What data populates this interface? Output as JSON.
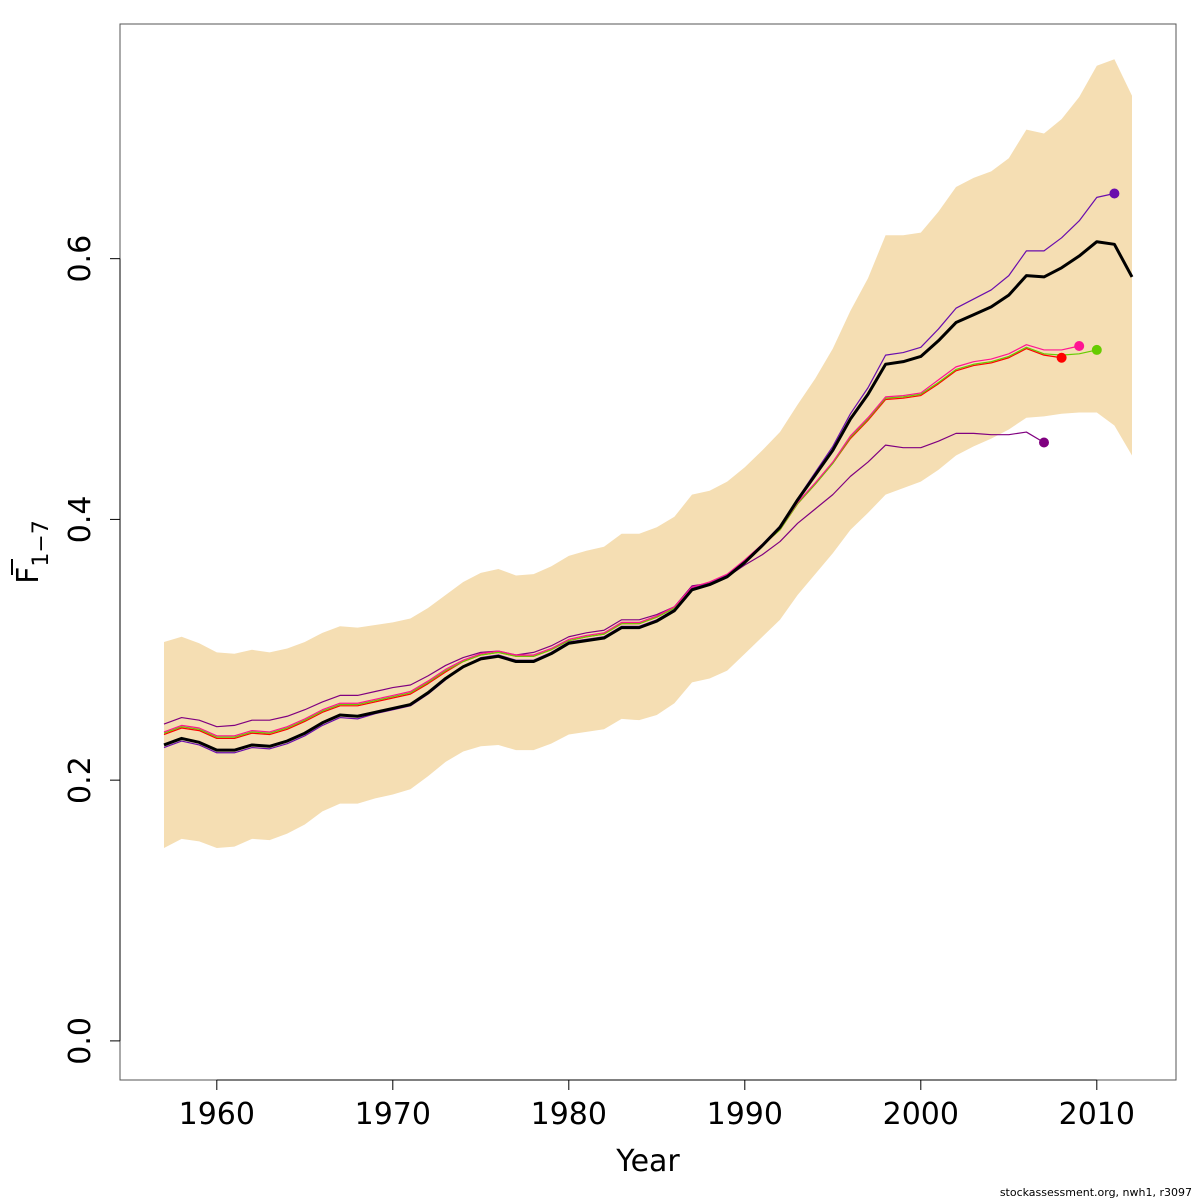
{
  "chart_data": {
    "type": "line",
    "xlabel": "Year",
    "ylabel_main": "F",
    "ylabel_sub": "1−7",
    "xlim": [
      1954.5,
      2014.5
    ],
    "ylim": [
      -0.03,
      0.78
    ],
    "x_ticks": [
      1960,
      1970,
      1980,
      1990,
      2000,
      2010
    ],
    "x_tick_labels": [
      "1960",
      "1970",
      "1980",
      "1990",
      "2000",
      "2010"
    ],
    "y_ticks": [
      0.0,
      0.2,
      0.4,
      0.6
    ],
    "y_tick_labels": [
      "0.0",
      "0.2",
      "0.4",
      "0.6"
    ],
    "grid": false,
    "band_color": "#F5DEB3",
    "band_years": [
      1957,
      1958,
      1959,
      1960,
      1961,
      1962,
      1963,
      1964,
      1965,
      1966,
      1967,
      1968,
      1969,
      1970,
      1971,
      1972,
      1973,
      1974,
      1975,
      1976,
      1977,
      1978,
      1979,
      1980,
      1981,
      1982,
      1983,
      1984,
      1985,
      1986,
      1987,
      1988,
      1989,
      1990,
      1991,
      1992,
      1993,
      1994,
      1995,
      1996,
      1997,
      1998,
      1999,
      2000,
      2001,
      2002,
      2003,
      2004,
      2005,
      2006,
      2007,
      2008,
      2009,
      2010,
      2011,
      2012
    ],
    "band_upper": [
      0.306,
      0.31,
      0.305,
      0.298,
      0.297,
      0.3,
      0.298,
      0.301,
      0.306,
      0.313,
      0.318,
      0.317,
      0.319,
      0.321,
      0.324,
      0.332,
      0.342,
      0.352,
      0.359,
      0.362,
      0.357,
      0.358,
      0.364,
      0.372,
      0.376,
      0.379,
      0.389,
      0.389,
      0.394,
      0.402,
      0.419,
      0.422,
      0.429,
      0.44,
      0.453,
      0.467,
      0.488,
      0.508,
      0.531,
      0.56,
      0.585,
      0.618,
      0.618,
      0.62,
      0.636,
      0.655,
      0.662,
      0.667,
      0.677,
      0.699,
      0.696,
      0.707,
      0.724,
      0.748,
      0.753,
      0.725
    ],
    "band_lower": [
      0.148,
      0.155,
      0.153,
      0.148,
      0.149,
      0.155,
      0.154,
      0.159,
      0.166,
      0.176,
      0.182,
      0.182,
      0.186,
      0.189,
      0.193,
      0.203,
      0.214,
      0.222,
      0.226,
      0.227,
      0.223,
      0.223,
      0.228,
      0.235,
      0.237,
      0.239,
      0.247,
      0.246,
      0.25,
      0.259,
      0.275,
      0.278,
      0.284,
      0.297,
      0.31,
      0.323,
      0.342,
      0.358,
      0.374,
      0.392,
      0.405,
      0.419,
      0.424,
      0.429,
      0.438,
      0.449,
      0.456,
      0.462,
      0.469,
      0.478,
      0.479,
      0.481,
      0.482,
      0.482,
      0.472,
      0.449
    ],
    "series": [
      {
        "color": "#000000",
        "width": 3,
        "x": [
          1957,
          1958,
          1959,
          1960,
          1961,
          1962,
          1963,
          1964,
          1965,
          1966,
          1967,
          1968,
          1969,
          1970,
          1971,
          1972,
          1973,
          1974,
          1975,
          1976,
          1977,
          1978,
          1979,
          1980,
          1981,
          1982,
          1983,
          1984,
          1985,
          1986,
          1987,
          1988,
          1989,
          1990,
          1991,
          1992,
          1993,
          1994,
          1995,
          1996,
          1997,
          1998,
          1999,
          2000,
          2001,
          2002,
          2003,
          2004,
          2005,
          2006,
          2007,
          2008,
          2009,
          2010,
          2011,
          2012
        ],
        "y": [
          0.227,
          0.232,
          0.229,
          0.223,
          0.223,
          0.227,
          0.226,
          0.23,
          0.236,
          0.244,
          0.25,
          0.249,
          0.252,
          0.255,
          0.258,
          0.267,
          0.278,
          0.287,
          0.293,
          0.295,
          0.291,
          0.291,
          0.297,
          0.305,
          0.307,
          0.309,
          0.317,
          0.317,
          0.322,
          0.33,
          0.346,
          0.35,
          0.356,
          0.367,
          0.38,
          0.394,
          0.415,
          0.434,
          0.453,
          0.477,
          0.496,
          0.519,
          0.521,
          0.525,
          0.537,
          0.551,
          0.557,
          0.563,
          0.572,
          0.587,
          0.586,
          0.593,
          0.602,
          0.613,
          0.611,
          0.586
        ]
      },
      {
        "color": "#FF0000",
        "width": 1.2,
        "x": [
          1957,
          1958,
          1959,
          1960,
          1961,
          1962,
          1963,
          1964,
          1965,
          1966,
          1967,
          1968,
          1969,
          1970,
          1971,
          1972,
          1973,
          1974,
          1975,
          1976,
          1977,
          1978,
          1979,
          1980,
          1981,
          1982,
          1983,
          1984,
          1985,
          1986,
          1987,
          1988,
          1989,
          1990,
          1991,
          1992,
          1993,
          1994,
          1995,
          1996,
          1997,
          1998,
          1999,
          2000,
          2001,
          2002,
          2003,
          2004,
          2005,
          2006,
          2007,
          2008
        ],
        "y": [
          0.235,
          0.24,
          0.238,
          0.232,
          0.232,
          0.236,
          0.235,
          0.239,
          0.245,
          0.252,
          0.257,
          0.257,
          0.26,
          0.263,
          0.266,
          0.274,
          0.283,
          0.291,
          0.296,
          0.298,
          0.295,
          0.295,
          0.3,
          0.307,
          0.31,
          0.312,
          0.32,
          0.32,
          0.325,
          0.332,
          0.347,
          0.351,
          0.357,
          0.368,
          0.38,
          0.392,
          0.412,
          0.427,
          0.443,
          0.462,
          0.476,
          0.492,
          0.493,
          0.495,
          0.504,
          0.514,
          0.518,
          0.52,
          0.524,
          0.531,
          0.526,
          0.524
        ],
        "end_point": [
          2008,
          0.524
        ]
      },
      {
        "color": "#FF1493",
        "width": 1.2,
        "x": [
          1957,
          1958,
          1959,
          1960,
          1961,
          1962,
          1963,
          1964,
          1965,
          1966,
          1967,
          1968,
          1969,
          1970,
          1971,
          1972,
          1973,
          1974,
          1975,
          1976,
          1977,
          1978,
          1979,
          1980,
          1981,
          1982,
          1983,
          1984,
          1985,
          1986,
          1987,
          1988,
          1989,
          1990,
          1991,
          1992,
          1993,
          1994,
          1995,
          1996,
          1997,
          1998,
          1999,
          2000,
          2001,
          2002,
          2003,
          2004,
          2005,
          2006,
          2007,
          2008,
          2009
        ],
        "y": [
          0.237,
          0.242,
          0.24,
          0.234,
          0.234,
          0.238,
          0.237,
          0.241,
          0.247,
          0.254,
          0.259,
          0.259,
          0.262,
          0.265,
          0.268,
          0.276,
          0.285,
          0.292,
          0.297,
          0.299,
          0.296,
          0.296,
          0.301,
          0.308,
          0.311,
          0.313,
          0.321,
          0.321,
          0.326,
          0.333,
          0.348,
          0.352,
          0.358,
          0.369,
          0.381,
          0.393,
          0.413,
          0.428,
          0.444,
          0.464,
          0.478,
          0.494,
          0.495,
          0.497,
          0.507,
          0.517,
          0.521,
          0.523,
          0.527,
          0.534,
          0.53,
          0.53,
          0.533
        ],
        "end_point": [
          2009,
          0.533
        ]
      },
      {
        "color": "#66CC00",
        "width": 1.2,
        "x": [
          1957,
          1958,
          1959,
          1960,
          1961,
          1962,
          1963,
          1964,
          1965,
          1966,
          1967,
          1968,
          1969,
          1970,
          1971,
          1972,
          1973,
          1974,
          1975,
          1976,
          1977,
          1978,
          1979,
          1980,
          1981,
          1982,
          1983,
          1984,
          1985,
          1986,
          1987,
          1988,
          1989,
          1990,
          1991,
          1992,
          1993,
          1994,
          1995,
          1996,
          1997,
          1998,
          1999,
          2000,
          2001,
          2002,
          2003,
          2004,
          2005,
          2006,
          2007,
          2008,
          2009,
          2010
        ],
        "y": [
          0.236,
          0.241,
          0.239,
          0.233,
          0.233,
          0.237,
          0.236,
          0.24,
          0.246,
          0.253,
          0.258,
          0.258,
          0.261,
          0.264,
          0.267,
          0.275,
          0.284,
          0.291,
          0.296,
          0.298,
          0.295,
          0.295,
          0.3,
          0.307,
          0.31,
          0.312,
          0.32,
          0.32,
          0.325,
          0.332,
          0.347,
          0.351,
          0.357,
          0.368,
          0.38,
          0.392,
          0.412,
          0.427,
          0.443,
          0.463,
          0.477,
          0.493,
          0.494,
          0.496,
          0.505,
          0.515,
          0.519,
          0.521,
          0.525,
          0.532,
          0.527,
          0.526,
          0.527,
          0.53
        ],
        "end_point": [
          2010,
          0.53
        ]
      },
      {
        "color": "#800080",
        "width": 1.2,
        "x": [
          1957,
          1958,
          1959,
          1960,
          1961,
          1962,
          1963,
          1964,
          1965,
          1966,
          1967,
          1968,
          1969,
          1970,
          1971,
          1972,
          1973,
          1974,
          1975,
          1976,
          1977,
          1978,
          1979,
          1980,
          1981,
          1982,
          1983,
          1984,
          1985,
          1986,
          1987,
          1988,
          1989,
          1990,
          1991,
          1992,
          1993,
          1994,
          1995,
          1996,
          1997,
          1998,
          1999,
          2000,
          2001,
          2002,
          2003,
          2004,
          2005,
          2006,
          2007
        ],
        "y": [
          0.243,
          0.248,
          0.246,
          0.241,
          0.242,
          0.246,
          0.246,
          0.249,
          0.254,
          0.26,
          0.265,
          0.265,
          0.268,
          0.271,
          0.273,
          0.28,
          0.288,
          0.294,
          0.298,
          0.299,
          0.296,
          0.298,
          0.303,
          0.31,
          0.313,
          0.315,
          0.323,
          0.323,
          0.327,
          0.333,
          0.349,
          0.351,
          0.356,
          0.365,
          0.373,
          0.383,
          0.397,
          0.408,
          0.419,
          0.433,
          0.444,
          0.457,
          0.455,
          0.455,
          0.46,
          0.466,
          0.466,
          0.465,
          0.465,
          0.467,
          0.459
        ],
        "end_point": [
          2007,
          0.459
        ]
      },
      {
        "color": "#6A0DAD",
        "width": 1.2,
        "x": [
          1957,
          1958,
          1959,
          1960,
          1961,
          1962,
          1963,
          1964,
          1965,
          1966,
          1967,
          1968,
          1969,
          1970,
          1971,
          1972,
          1973,
          1974,
          1975,
          1976,
          1977,
          1978,
          1979,
          1980,
          1981,
          1982,
          1983,
          1984,
          1985,
          1986,
          1987,
          1988,
          1989,
          1990,
          1991,
          1992,
          1993,
          1994,
          1995,
          1996,
          1997,
          1998,
          1999,
          2000,
          2001,
          2002,
          2003,
          2004,
          2005,
          2006,
          2007,
          2008,
          2009,
          2010,
          2011
        ],
        "y": [
          0.225,
          0.23,
          0.227,
          0.221,
          0.221,
          0.225,
          0.224,
          0.228,
          0.234,
          0.242,
          0.248,
          0.247,
          0.251,
          0.254,
          0.257,
          0.266,
          0.277,
          0.287,
          0.294,
          0.296,
          0.292,
          0.292,
          0.298,
          0.306,
          0.308,
          0.31,
          0.318,
          0.318,
          0.323,
          0.331,
          0.347,
          0.351,
          0.357,
          0.368,
          0.381,
          0.395,
          0.416,
          0.436,
          0.456,
          0.481,
          0.501,
          0.526,
          0.528,
          0.532,
          0.546,
          0.562,
          0.569,
          0.576,
          0.587,
          0.606,
          0.606,
          0.616,
          0.629,
          0.647,
          0.65
        ],
        "end_point": [
          2011,
          0.65
        ]
      }
    ]
  },
  "caption": "stockassessment.org, nwh1, r3097"
}
